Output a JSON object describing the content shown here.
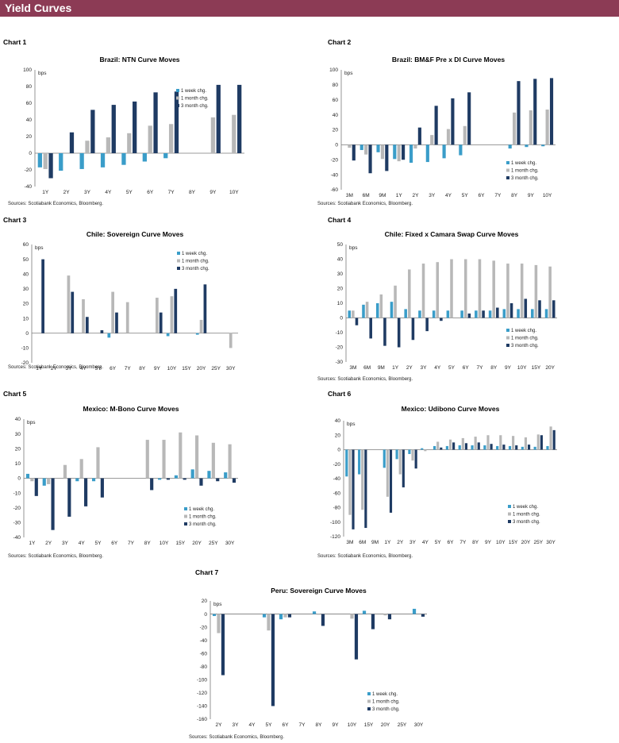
{
  "header": {
    "title": "Yield Curves"
  },
  "colors": {
    "banner": "#8c3b55",
    "week": "#3a9dc9",
    "month": "#b8b8b8",
    "three_month": "#1f3b63"
  },
  "charts": [
    {
      "label": "Chart 1",
      "chart_data": {
        "type": "bar",
        "title": "Brazil: NTN Curve Moves",
        "unit": "bps",
        "categories": [
          "1Y",
          "2Y",
          "3Y",
          "4Y",
          "5Y",
          "6Y",
          "7Y",
          "8Y",
          "9Y",
          "10Y"
        ],
        "ylim": [
          -40,
          100
        ],
        "ystep": 20,
        "series": [
          {
            "name": "1 week chg.",
            "values": [
              -17,
              -21,
              -19,
              -17,
              -14,
              -10,
              -6,
              0,
              0,
              0
            ]
          },
          {
            "name": "1 month chg.",
            "values": [
              -19,
              0,
              15,
              19,
              24,
              33,
              35,
              0,
              43,
              46
            ]
          },
          {
            "name": "3 month chg.",
            "values": [
              -30,
              25,
              52,
              58,
              62,
              73,
              74,
              0,
              82,
              82
            ]
          }
        ],
        "legend_position": "lower-right",
        "source": "Sources: Scotiabank Economics, Bloomberg."
      }
    },
    {
      "label": "Chart 2",
      "chart_data": {
        "type": "bar",
        "title": "Brazil: BM&F Pre x DI Curve Moves",
        "unit": "bps",
        "categories": [
          "3M",
          "6M",
          "9M",
          "1Y",
          "2Y",
          "3Y",
          "4Y",
          "5Y",
          "6Y",
          "7Y",
          "8Y",
          "9Y",
          "10Y"
        ],
        "ylim": [
          -60,
          100
        ],
        "ystep": 20,
        "series": [
          {
            "name": "1 week chg.",
            "values": [
              0,
              -7,
              -10,
              -19,
              -24,
              -23,
              -18,
              -14,
              0,
              0,
              -5,
              -3,
              -2
            ]
          },
          {
            "name": "1 month chg.",
            "values": [
              -4,
              -13,
              -19,
              -22,
              -5,
              13,
              21,
              25,
              0,
              0,
              43,
              46,
              47
            ]
          },
          {
            "name": "3 month chg.",
            "values": [
              -21,
              -38,
              -35,
              -20,
              23,
              52,
              62,
              70,
              0,
              0,
              85,
              88,
              89
            ]
          }
        ],
        "legend_position": "lower-right",
        "source": "Sources: Scotiabank Economics, Bloomberg."
      }
    },
    {
      "label": "Chart 3",
      "chart_data": {
        "type": "bar",
        "title": "Chile: Sovereign Curve Moves",
        "unit": "bps",
        "categories": [
          "1Y",
          "2Y",
          "3Y",
          "4Y",
          "5Y",
          "6Y",
          "7Y",
          "8Y",
          "9Y",
          "10Y",
          "15Y",
          "20Y",
          "25Y",
          "30Y"
        ],
        "ylim": [
          -20,
          60
        ],
        "ystep": 10,
        "series": [
          {
            "name": "1 week chg.",
            "values": [
              0,
              0,
              0,
              0,
              0,
              -3,
              0,
              0,
              0,
              -2,
              0,
              -1,
              0,
              0
            ]
          },
          {
            "name": "1 month chg.",
            "values": [
              0,
              0,
              39,
              23,
              0,
              28,
              21,
              0,
              24,
              25,
              0,
              9,
              0,
              -10
            ]
          },
          {
            "name": "3 month chg.",
            "values": [
              50,
              0,
              28,
              11,
              2,
              14,
              0,
              0,
              14,
              30,
              0,
              33,
              0,
              0
            ]
          }
        ],
        "legend_position": "top-right",
        "source": "Sources: Scotiabank Economics, Bloomberg."
      }
    },
    {
      "label": "Chart 4",
      "chart_data": {
        "type": "bar",
        "title": "Chile: Fixed x Camara Swap Curve Moves",
        "unit": "bps",
        "categories": [
          "3M",
          "6M",
          "9M",
          "1Y",
          "2Y",
          "3Y",
          "4Y",
          "5Y",
          "6Y",
          "7Y",
          "8Y",
          "9Y",
          "10Y",
          "15Y",
          "20Y"
        ],
        "ylim": [
          -30,
          50
        ],
        "ystep": 10,
        "series": [
          {
            "name": "1 week chg.",
            "values": [
              5,
              9,
              10,
              11,
              6,
              5,
              5,
              5,
              5,
              5,
              5,
              6,
              6,
              6,
              6
            ]
          },
          {
            "name": "1 month chg.",
            "values": [
              5,
              11,
              16,
              22,
              33,
              37,
              38,
              40,
              40,
              40,
              39,
              37,
              37,
              36,
              35
            ]
          },
          {
            "name": "3 month chg.",
            "values": [
              -5,
              -14,
              -19,
              -20,
              -15,
              -9,
              -2,
              0,
              3,
              5,
              7,
              10,
              13,
              12,
              12
            ]
          }
        ],
        "legend_position": "lower-right",
        "source": "Sources: Scotiabank Economics, Bloomberg."
      }
    },
    {
      "label": "Chart 5",
      "chart_data": {
        "type": "bar",
        "title": "Mexico: M-Bono Curve Moves",
        "unit": "bps",
        "categories": [
          "1Y",
          "2Y",
          "3Y",
          "4Y",
          "5Y",
          "6Y",
          "7Y",
          "8Y",
          "10Y",
          "15Y",
          "20Y",
          "25Y",
          "30Y"
        ],
        "ylim": [
          -40,
          40
        ],
        "ystep": 10,
        "series": [
          {
            "name": "1 week chg.",
            "values": [
              3,
              -5,
              0,
              -2,
              -2,
              0,
              0,
              0,
              -1,
              2,
              6,
              5,
              4
            ]
          },
          {
            "name": "1 month chg.",
            "values": [
              -2,
              -4,
              9,
              13,
              21,
              0,
              0,
              26,
              26,
              31,
              29,
              24,
              23
            ]
          },
          {
            "name": "3 month chg.",
            "values": [
              -12,
              -35,
              -26,
              -19,
              -13,
              0,
              0,
              -8,
              -1,
              -1,
              -5,
              -2,
              -3
            ]
          }
        ],
        "legend_position": "lower-right",
        "source": "Sources: Scotiabank Economics, Bloomberg."
      }
    },
    {
      "label": "Chart 6",
      "chart_data": {
        "type": "bar",
        "title": "Mexico: Udibono Curve Moves",
        "unit": "bps",
        "categories": [
          "3M",
          "6M",
          "9M",
          "1Y",
          "2Y",
          "3Y",
          "4Y",
          "5Y",
          "6Y",
          "7Y",
          "8Y",
          "9Y",
          "10Y",
          "15Y",
          "20Y",
          "25Y",
          "30Y"
        ],
        "ylim": [
          -120,
          40
        ],
        "ystep": 20,
        "series": [
          {
            "name": "1 week chg.",
            "values": [
              -37,
              -34,
              0,
              -25,
              -13,
              -6,
              2,
              5,
              5,
              6,
              6,
              6,
              5,
              5,
              4,
              4,
              5
            ]
          },
          {
            "name": "1 month chg.",
            "values": [
              -90,
              -83,
              0,
              -65,
              -34,
              -15,
              -2,
              11,
              14,
              16,
              18,
              20,
              20,
              19,
              17,
              21,
              32
            ]
          },
          {
            "name": "3 month chg.",
            "values": [
              -110,
              -108,
              0,
              -87,
              -52,
              -26,
              0,
              3,
              10,
              9,
              10,
              8,
              7,
              6,
              7,
              20,
              27
            ]
          }
        ],
        "legend_position": "lower-right",
        "source": "Sources: Scotiabank Economics, Bloomberg."
      }
    },
    {
      "label": "Chart 7",
      "chart_data": {
        "type": "bar",
        "title": "Peru: Sovereign Curve Moves",
        "unit": "bps",
        "categories": [
          "2Y",
          "3Y",
          "4Y",
          "5Y",
          "6Y",
          "7Y",
          "8Y",
          "9Y",
          "10Y",
          "15Y",
          "20Y",
          "25Y",
          "30Y"
        ],
        "ylim": [
          -160,
          20
        ],
        "ystep": 20,
        "series": [
          {
            "name": "1 week chg.",
            "values": [
              -3,
              0,
              0,
              -5,
              -8,
              0,
              4,
              0,
              0,
              5,
              0,
              0,
              8
            ]
          },
          {
            "name": "1 month chg.",
            "values": [
              -29,
              0,
              0,
              -25,
              -5,
              0,
              -1,
              0,
              -7,
              1,
              -2,
              0,
              0
            ]
          },
          {
            "name": "3 month chg.",
            "values": [
              -93,
              0,
              0,
              -140,
              -5,
              0,
              -18,
              0,
              -69,
              -23,
              -8,
              0,
              -4
            ]
          }
        ],
        "legend_position": "lower-right",
        "source": "Sources: Scotiabank Economics, Bloomberg."
      }
    }
  ]
}
